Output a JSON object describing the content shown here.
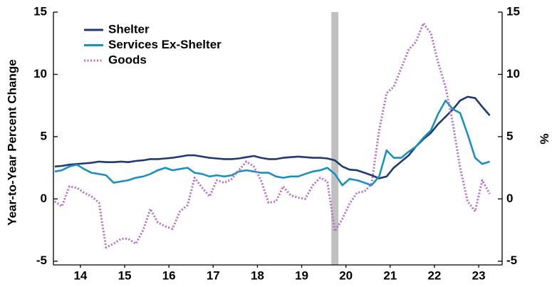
{
  "chart_data": {
    "type": "line",
    "y_label": "Year-to-Year Percent Change",
    "y2_label": "%",
    "legend": "upper left",
    "x": [
      2013.92,
      2014.08,
      2014.25,
      2014.42,
      2014.58,
      2014.75,
      2014.92,
      2015.08,
      2015.25,
      2015.42,
      2015.58,
      2015.75,
      2015.92,
      2016.08,
      2016.25,
      2016.42,
      2016.58,
      2016.75,
      2016.92,
      2017.08,
      2017.25,
      2017.42,
      2017.58,
      2017.75,
      2017.92,
      2018.08,
      2018.25,
      2018.42,
      2018.58,
      2018.75,
      2018.92,
      2019.08,
      2019.25,
      2019.42,
      2019.58,
      2019.75,
      2019.92,
      2020.08,
      2020.25,
      2020.42,
      2020.58,
      2020.75,
      2020.92,
      2021.08,
      2021.25,
      2021.42,
      2021.58,
      2021.75,
      2021.92,
      2022.08,
      2022.25,
      2022.42,
      2022.58,
      2022.75,
      2022.92,
      2023.08,
      2023.25,
      2023.42,
      2023.58,
      2023.75
    ],
    "series": [
      {
        "name": "Shelter",
        "color": "#1f3a73",
        "dash": "solid",
        "values": [
          2.6,
          2.65,
          2.75,
          2.8,
          2.85,
          2.9,
          3.0,
          2.95,
          2.95,
          3.0,
          2.95,
          3.05,
          3.1,
          3.2,
          3.2,
          3.25,
          3.3,
          3.4,
          3.5,
          3.5,
          3.4,
          3.3,
          3.25,
          3.2,
          3.2,
          3.25,
          3.35,
          3.45,
          3.3,
          3.2,
          3.2,
          3.3,
          3.35,
          3.4,
          3.35,
          3.3,
          3.3,
          3.25,
          3.1,
          2.6,
          2.35,
          2.3,
          2.1,
          1.9,
          1.65,
          1.8,
          2.5,
          3.0,
          3.5,
          4.2,
          4.8,
          5.3,
          6.0,
          6.6,
          7.2,
          7.9,
          8.2,
          8.1,
          7.4,
          6.7
        ]
      },
      {
        "name": "Services Ex-Shelter",
        "color": "#1a8fc0",
        "dash": "solid",
        "values": [
          2.2,
          2.3,
          2.6,
          2.75,
          2.4,
          2.1,
          2.0,
          1.9,
          1.3,
          1.4,
          1.5,
          1.7,
          1.8,
          2.0,
          2.3,
          2.5,
          2.3,
          2.4,
          2.5,
          2.1,
          2.0,
          1.8,
          1.9,
          1.8,
          1.9,
          2.2,
          2.3,
          2.2,
          2.1,
          2.1,
          1.8,
          1.7,
          1.8,
          1.8,
          2.0,
          2.2,
          2.3,
          2.5,
          2.0,
          1.1,
          1.6,
          1.5,
          1.3,
          1.1,
          1.8,
          3.9,
          3.3,
          3.3,
          3.8,
          4.2,
          4.9,
          5.5,
          6.8,
          7.9,
          7.2,
          6.9,
          5.2,
          3.3,
          2.8,
          3.0
        ]
      },
      {
        "name": "Goods",
        "color": "#b36ec9",
        "dash": "dotted",
        "values": [
          -0.2,
          -0.6,
          1.0,
          0.9,
          0.5,
          0.2,
          -0.3,
          -3.9,
          -3.6,
          -3.2,
          -3.2,
          -3.6,
          -2.5,
          -0.8,
          -1.9,
          -2.2,
          -2.4,
          -1.0,
          -0.5,
          1.7,
          0.9,
          0.2,
          1.5,
          1.3,
          1.6,
          2.3,
          3.0,
          2.6,
          1.5,
          -0.3,
          -0.2,
          1.0,
          0.3,
          0.1,
          0.0,
          1.1,
          1.7,
          1.4,
          -2.6,
          -1.6,
          -0.4,
          0.5,
          0.6,
          1.2,
          5.5,
          8.5,
          9.0,
          10.5,
          12.0,
          12.6,
          14.1,
          13.3,
          11.0,
          9.0,
          6.0,
          2.5,
          -0.2,
          -1.0,
          1.5,
          0.4
        ]
      }
    ],
    "recession_band": [
      2020.17,
      2020.33
    ],
    "band_color": "#c0c0c0",
    "xlim": [
      2013.89,
      2024.03
    ],
    "xticks": [
      {
        "value": 2014.5,
        "label": "14"
      },
      {
        "value": 2015.5,
        "label": "15"
      },
      {
        "value": 2016.5,
        "label": "16"
      },
      {
        "value": 2017.5,
        "label": "17"
      },
      {
        "value": 2018.5,
        "label": "18"
      },
      {
        "value": 2019.5,
        "label": "19"
      },
      {
        "value": 2020.5,
        "label": "20"
      },
      {
        "value": 2021.5,
        "label": "21"
      },
      {
        "value": 2022.5,
        "label": "22"
      },
      {
        "value": 2023.5,
        "label": "23"
      }
    ],
    "ylim": [
      -5.3,
      15
    ],
    "yticks": [
      -5,
      0,
      5,
      10,
      15
    ],
    "y2lim": [
      -5.3,
      15
    ],
    "y2ticks": [
      -5,
      0,
      5,
      10,
      15
    ]
  }
}
